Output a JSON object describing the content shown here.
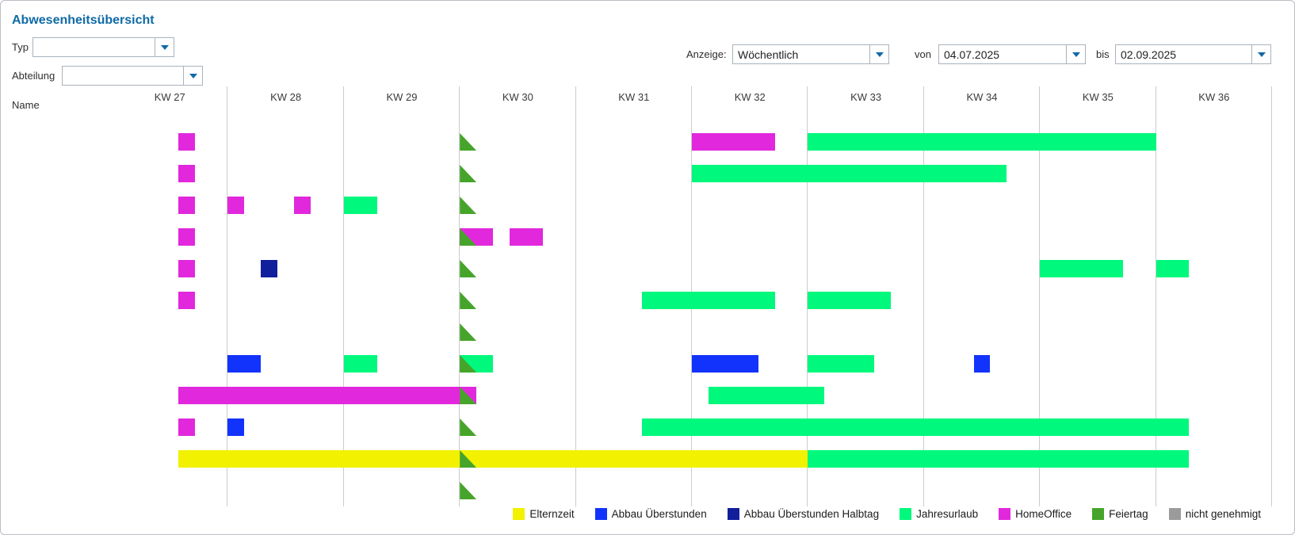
{
  "title": "Abwesenheitsübersicht",
  "filters": {
    "typ": {
      "label": "Typ",
      "value": ""
    },
    "abteilung": {
      "label": "Abteilung",
      "value": ""
    },
    "anzeige": {
      "label": "Anzeige:",
      "value": "Wöchentlich"
    },
    "von": {
      "label": "von",
      "value": "04.07.2025"
    },
    "bis": {
      "label": "bis",
      "value": "02.09.2025"
    }
  },
  "chart_data": {
    "type": "gantt",
    "name_column_header": "Name",
    "weeks": [
      "KW 27",
      "KW 28",
      "KW 29",
      "KW 30",
      "KW 31",
      "KW 32",
      "KW 33",
      "KW 34",
      "KW 35",
      "KW 36"
    ],
    "days_per_week": 7,
    "total_days": 70,
    "date_range": {
      "from": "04.07.2025",
      "to": "02.09.2025"
    },
    "types": {
      "Elternzeit": "#F1F100",
      "Abbau Überstunden": "#1233FB",
      "Abbau Überstunden Halbtag": "#111F9C",
      "Jahresurlaub": "#00F87C",
      "HomeOffice": "#E128DC",
      "Feiertag": "#46A42B",
      "nicht genehmigt": "#9B9B9B"
    },
    "rows": [
      {
        "bars": [
          {
            "type": "HomeOffice",
            "start": 4,
            "days": 1
          },
          {
            "type": "HomeOffice",
            "start": 35,
            "days": 5
          },
          {
            "type": "Jahresurlaub",
            "start": 42,
            "days": 21
          }
        ],
        "holidays": [
          21
        ]
      },
      {
        "bars": [
          {
            "type": "HomeOffice",
            "start": 4,
            "days": 1
          },
          {
            "type": "Jahresurlaub",
            "start": 35,
            "days": 19
          }
        ],
        "holidays": [
          21
        ]
      },
      {
        "bars": [
          {
            "type": "HomeOffice",
            "start": 4,
            "days": 1
          },
          {
            "type": "HomeOffice",
            "start": 7,
            "days": 1
          },
          {
            "type": "HomeOffice",
            "start": 11,
            "days": 1
          },
          {
            "type": "Jahresurlaub",
            "start": 14,
            "days": 2
          }
        ],
        "holidays": [
          21
        ]
      },
      {
        "bars": [
          {
            "type": "HomeOffice",
            "start": 4,
            "days": 1
          },
          {
            "type": "HomeOffice",
            "start": 21,
            "days": 2
          },
          {
            "type": "HomeOffice",
            "start": 24,
            "days": 2
          }
        ],
        "holidays": [
          21
        ]
      },
      {
        "bars": [
          {
            "type": "HomeOffice",
            "start": 4,
            "days": 1
          },
          {
            "type": "Abbau Überstunden Halbtag",
            "start": 9,
            "days": 1
          },
          {
            "type": "Jahresurlaub",
            "start": 56,
            "days": 5
          },
          {
            "type": "Jahresurlaub",
            "start": 63,
            "days": 2
          }
        ],
        "holidays": [
          21
        ]
      },
      {
        "bars": [
          {
            "type": "HomeOffice",
            "start": 4,
            "days": 1
          },
          {
            "type": "Jahresurlaub",
            "start": 32,
            "days": 8
          },
          {
            "type": "Jahresurlaub",
            "start": 42,
            "days": 5
          }
        ],
        "holidays": [
          21
        ]
      },
      {
        "bars": [],
        "holidays": [
          21
        ]
      },
      {
        "bars": [
          {
            "type": "Abbau Überstunden",
            "start": 7,
            "days": 2
          },
          {
            "type": "Jahresurlaub",
            "start": 14,
            "days": 2
          },
          {
            "type": "Jahresurlaub",
            "start": 21,
            "days": 2
          },
          {
            "type": "Abbau Überstunden",
            "start": 35,
            "days": 4
          },
          {
            "type": "Jahresurlaub",
            "start": 42,
            "days": 4
          },
          {
            "type": "Abbau Überstunden",
            "start": 52,
            "days": 1
          }
        ],
        "holidays": [
          21
        ]
      },
      {
        "bars": [
          {
            "type": "HomeOffice",
            "start": 4,
            "days": 18
          },
          {
            "type": "Jahresurlaub",
            "start": 36,
            "days": 7
          }
        ],
        "holidays": [
          21
        ]
      },
      {
        "bars": [
          {
            "type": "HomeOffice",
            "start": 4,
            "days": 1
          },
          {
            "type": "Abbau Überstunden",
            "start": 7,
            "days": 1
          },
          {
            "type": "Jahresurlaub",
            "start": 32,
            "days": 33
          }
        ],
        "holidays": [
          21
        ]
      },
      {
        "bars": [
          {
            "type": "Elternzeit",
            "start": 4,
            "days": 38
          },
          {
            "type": "Jahresurlaub",
            "start": 42,
            "days": 23
          }
        ],
        "holidays": [
          21
        ]
      },
      {
        "bars": [],
        "holidays": [
          21
        ]
      }
    ]
  },
  "legend": [
    {
      "label": "Elternzeit",
      "type": "Elternzeit"
    },
    {
      "label": "Abbau Überstunden",
      "type": "Abbau Überstunden"
    },
    {
      "label": "Abbau Überstunden Halbtag",
      "type": "Abbau Überstunden Halbtag"
    },
    {
      "label": "Jahresurlaub",
      "type": "Jahresurlaub"
    },
    {
      "label": "HomeOffice",
      "type": "HomeOffice"
    },
    {
      "label": "Feiertag",
      "type": "Feiertag"
    },
    {
      "label": "nicht genehmigt",
      "type": "nicht genehmigt"
    }
  ]
}
